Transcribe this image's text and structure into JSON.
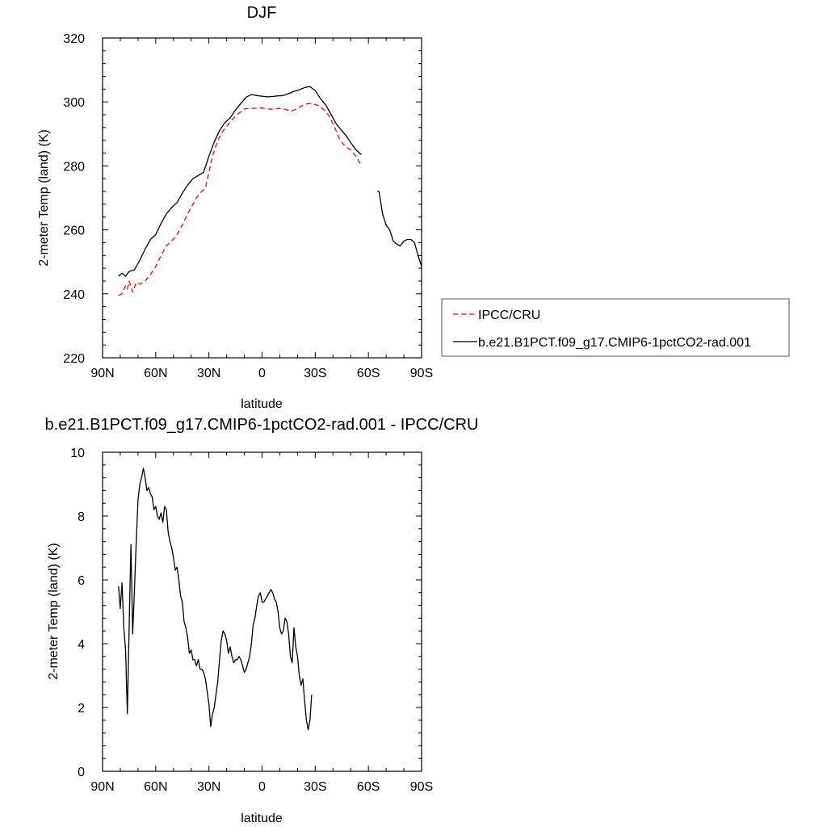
{
  "chart_data": [
    {
      "type": "line",
      "title": "DJF",
      "xlabel": "latitude",
      "ylabel": "2-meter Temp (land) (K)",
      "xlim": [
        90,
        -90
      ],
      "ylim": [
        220,
        320
      ],
      "x_tick_values": [
        90,
        60,
        30,
        0,
        -30,
        -60,
        -90
      ],
      "x_tick_labels": [
        "90N",
        "60N",
        "30N",
        "0",
        "30S",
        "60S",
        "90S"
      ],
      "y_tick_values": [
        220,
        240,
        260,
        280,
        300,
        320
      ],
      "y_tick_labels": [
        "220",
        "240",
        "260",
        "280",
        "300",
        "320"
      ],
      "legend_position": "right",
      "series": [
        {
          "name": "IPCC/CRU",
          "color": "#ff0000",
          "dash": "dashed",
          "segments": [
            [
              [
                81,
                239.5
              ],
              [
                79,
                240
              ],
              [
                77,
                242.5
              ],
              [
                76,
                241.5
              ],
              [
                75,
                244
              ],
              [
                73,
                240.5
              ],
              [
                71,
                243.5
              ],
              [
                69,
                243
              ],
              [
                66,
                244
              ],
              [
                63,
                246
              ],
              [
                60,
                248.5
              ],
              [
                57,
                252
              ],
              [
                54,
                255
              ],
              [
                51,
                256.5
              ],
              [
                48,
                258.5
              ],
              [
                45,
                261.5
              ],
              [
                42,
                265
              ],
              [
                39,
                268
              ],
              [
                37,
                270
              ],
              [
                35,
                271.5
              ],
              [
                32,
                273
              ],
              [
                30,
                278
              ],
              [
                28,
                283
              ],
              [
                25,
                288
              ],
              [
                22,
                291
              ],
              [
                19,
                293
              ],
              [
                16,
                295
              ],
              [
                13,
                296.5
              ],
              [
                10,
                297.8
              ],
              [
                7,
                298
              ],
              [
                4,
                298
              ],
              [
                1,
                298.1
              ],
              [
                -2,
                298
              ],
              [
                -5,
                297.7
              ],
              [
                -8,
                297.9
              ],
              [
                -11,
                298
              ],
              [
                -14,
                297.5
              ],
              [
                -17,
                297.2
              ],
              [
                -20,
                298
              ],
              [
                -23,
                299
              ],
              [
                -26,
                299.5
              ],
              [
                -29,
                299.4
              ],
              [
                -32,
                298.8
              ],
              [
                -35,
                297.5
              ],
              [
                -38,
                295.5
              ],
              [
                -41,
                292
              ],
              [
                -44,
                288
              ],
              [
                -47,
                286
              ],
              [
                -50,
                285
              ],
              [
                -53,
                283
              ],
              [
                -55,
                281
              ],
              [
                -56,
                280.5
              ]
            ]
          ]
        },
        {
          "name": "b.e21.B1PCT.f09_g17.CMIP6-1pctCO2-rad.001",
          "color": "#000000",
          "dash": "solid",
          "segments": [
            [
              [
                81,
                245.5
              ],
              [
                79,
                246.5
              ],
              [
                77,
                245.5
              ],
              [
                75,
                247
              ],
              [
                72,
                247.5
              ],
              [
                69,
                250.5
              ],
              [
                66,
                254
              ],
              [
                63,
                257
              ],
              [
                60,
                258.5
              ],
              [
                57,
                262
              ],
              [
                54,
                265
              ],
              [
                51,
                267
              ],
              [
                48,
                268.5
              ],
              [
                45,
                271.5
              ],
              [
                42,
                274
              ],
              [
                39,
                276
              ],
              [
                36,
                277
              ],
              [
                33,
                278
              ],
              [
                30,
                283
              ],
              [
                27,
                287.5
              ],
              [
                24,
                291
              ],
              [
                21,
                293.5
              ],
              [
                18,
                295
              ],
              [
                15,
                297.5
              ],
              [
                12,
                299.5
              ],
              [
                9,
                301.5
              ],
              [
                6,
                302.3
              ],
              [
                3,
                302
              ],
              [
                0,
                301.8
              ],
              [
                -3,
                301.6
              ],
              [
                -6,
                301.7
              ],
              [
                -9,
                301.9
              ],
              [
                -12,
                302
              ],
              [
                -15,
                302.6
              ],
              [
                -18,
                303.3
              ],
              [
                -21,
                303.8
              ],
              [
                -24,
                304.5
              ],
              [
                -27,
                304.8
              ],
              [
                -30,
                303.5
              ],
              [
                -33,
                301
              ],
              [
                -36,
                299
              ],
              [
                -39,
                296
              ],
              [
                -42,
                293
              ],
              [
                -45,
                291
              ],
              [
                -48,
                289
              ],
              [
                -51,
                286.5
              ],
              [
                -53,
                285
              ],
              [
                -56,
                283.5
              ]
            ],
            [
              [
                -65,
                272
              ],
              [
                -66,
                272
              ],
              [
                -68,
                265
              ],
              [
                -70,
                261.5
              ],
              [
                -72,
                260
              ],
              [
                -74,
                256.5
              ],
              [
                -76,
                255.5
              ],
              [
                -78,
                255
              ],
              [
                -80,
                256.5
              ],
              [
                -82,
                257
              ],
              [
                -84,
                257
              ],
              [
                -86,
                256
              ],
              [
                -88,
                252
              ],
              [
                -90,
                248.5
              ]
            ]
          ]
        }
      ]
    },
    {
      "type": "line",
      "title": "b.e21.B1PCT.f09_g17.CMIP6-1pctCO2-rad.001 - IPCC/CRU",
      "xlabel": "latitude",
      "ylabel": "2-meter Temp (land) (K)",
      "xlim": [
        90,
        -90
      ],
      "ylim": [
        0,
        10
      ],
      "x_tick_values": [
        90,
        60,
        30,
        0,
        -30,
        -60,
        -90
      ],
      "x_tick_labels": [
        "90N",
        "60N",
        "30N",
        "0",
        "30S",
        "60S",
        "90S"
      ],
      "y_tick_values": [
        0,
        2,
        4,
        6,
        8,
        10
      ],
      "y_tick_labels": [
        "0",
        "2",
        "4",
        "6",
        "8",
        "10"
      ],
      "series": [
        {
          "color": "#000000",
          "dash": "solid",
          "segments": [
            [
              [
                81,
                5.8
              ],
              [
                80,
                5.1
              ],
              [
                79,
                5.9
              ],
              [
                78,
                4.5
              ],
              [
                77,
                3.8
              ],
              [
                76,
                1.8
              ],
              [
                75,
                4.5
              ],
              [
                74,
                7.1
              ],
              [
                73,
                4.3
              ],
              [
                72,
                5.7
              ],
              [
                71,
                7.2
              ],
              [
                70,
                8.5
              ],
              [
                69,
                9.0
              ],
              [
                68,
                9.2
              ],
              [
                67,
                9.5
              ],
              [
                66,
                9.2
              ],
              [
                65,
                8.8
              ],
              [
                64,
                8.9
              ],
              [
                63,
                8.7
              ],
              [
                62,
                8.6
              ],
              [
                61,
                8.2
              ],
              [
                60,
                8.3
              ],
              [
                59,
                8.0
              ],
              [
                58,
                7.9
              ],
              [
                57,
                8.1
              ],
              [
                56,
                7.8
              ],
              [
                55,
                8.3
              ],
              [
                54,
                8.2
              ],
              [
                53,
                7.5
              ],
              [
                52,
                7.2
              ],
              [
                51,
                7.0
              ],
              [
                50,
                6.7
              ],
              [
                49,
                6.3
              ],
              [
                48,
                6.4
              ],
              [
                47,
                6.0
              ],
              [
                46,
                5.5
              ],
              [
                45,
                5.3
              ],
              [
                44,
                4.7
              ],
              [
                43,
                4.5
              ],
              [
                42,
                4.2
              ],
              [
                41,
                3.7
              ],
              [
                40,
                3.8
              ],
              [
                39,
                3.5
              ],
              [
                38,
                3.5
              ],
              [
                37,
                3.3
              ],
              [
                36,
                3.5
              ],
              [
                35,
                3.2
              ],
              [
                34,
                3.2
              ],
              [
                33,
                3.1
              ],
              [
                32,
                2.9
              ],
              [
                31,
                2.5
              ],
              [
                30,
                2.1
              ],
              [
                29,
                1.4
              ],
              [
                28,
                1.8
              ],
              [
                27,
                2.0
              ],
              [
                26,
                2.4
              ],
              [
                25,
                2.8
              ],
              [
                24,
                3.5
              ],
              [
                23,
                4.1
              ],
              [
                22,
                4.4
              ],
              [
                21,
                4.3
              ],
              [
                20,
                4.1
              ],
              [
                19,
                3.7
              ],
              [
                18,
                3.9
              ],
              [
                17,
                3.6
              ],
              [
                16,
                3.4
              ],
              [
                15,
                3.5
              ],
              [
                14,
                3.5
              ],
              [
                13,
                3.6
              ],
              [
                12,
                3.5
              ],
              [
                11,
                3.3
              ],
              [
                10,
                3.1
              ],
              [
                9,
                3.2
              ],
              [
                8,
                3.4
              ],
              [
                7,
                3.6
              ],
              [
                6,
                4.0
              ],
              [
                5,
                4.6
              ],
              [
                4,
                4.8
              ],
              [
                3,
                5.2
              ],
              [
                2,
                5.5
              ],
              [
                1,
                5.6
              ],
              [
                0,
                5.3
              ],
              [
                -1,
                5.3
              ],
              [
                -2,
                5.4
              ],
              [
                -3,
                5.5
              ],
              [
                -4,
                5.6
              ],
              [
                -5,
                5.7
              ],
              [
                -6,
                5.6
              ],
              [
                -7,
                5.4
              ],
              [
                -8,
                5.3
              ],
              [
                -9,
                5.0
              ],
              [
                -10,
                4.5
              ],
              [
                -11,
                4.3
              ],
              [
                -12,
                4.4
              ],
              [
                -13,
                4.8
              ],
              [
                -14,
                4.7
              ],
              [
                -15,
                4.3
              ],
              [
                -16,
                3.6
              ],
              [
                -17,
                3.4
              ],
              [
                -18,
                4.5
              ],
              [
                -19,
                3.9
              ],
              [
                -20,
                3.6
              ],
              [
                -21,
                3.0
              ],
              [
                -22,
                2.7
              ],
              [
                -23,
                2.9
              ],
              [
                -24,
                2.2
              ],
              [
                -25,
                1.6
              ],
              [
                -26,
                1.3
              ],
              [
                -27,
                1.6
              ],
              [
                -28,
                2.4
              ]
            ]
          ]
        }
      ]
    }
  ]
}
